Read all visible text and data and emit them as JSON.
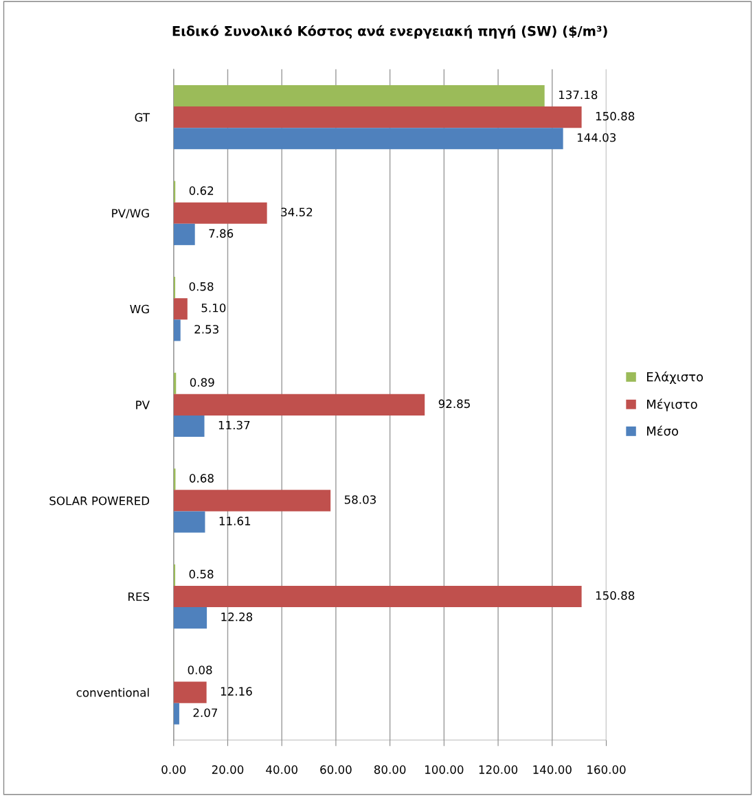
{
  "chart_data": {
    "type": "bar",
    "orientation": "horizontal",
    "title": "Ειδικό Συνολικό Κόστος ανά ενεργειακή πηγή (SW) ($/m³)",
    "categories": [
      "GT",
      "PV/WG",
      "WG",
      "PV",
      "SOLAR POWERED",
      "RES",
      "conventional"
    ],
    "series": [
      {
        "name": "Ελάχιστο",
        "color": "#9bbb59",
        "values": [
          137.18,
          0.62,
          0.58,
          0.89,
          0.68,
          0.58,
          0.08
        ],
        "value_labels": [
          "137.18",
          "0.62",
          "0.58",
          "0.89",
          "0.68",
          "0.58",
          "0.08"
        ]
      },
      {
        "name": "Μέγιστο",
        "color": "#c0504d",
        "values": [
          150.88,
          34.52,
          5.1,
          92.85,
          58.03,
          150.88,
          12.16
        ],
        "value_labels": [
          "150.88",
          "34.52",
          "5.10",
          "92.85",
          "58.03",
          "150.88",
          "12.16"
        ]
      },
      {
        "name": "Μέσο",
        "color": "#4f81bd",
        "values": [
          144.03,
          7.86,
          2.53,
          11.37,
          11.61,
          12.28,
          2.07
        ],
        "value_labels": [
          "144.03",
          "7.86",
          "2.53",
          "11.37",
          "11.61",
          "12.28",
          "2.07"
        ]
      }
    ],
    "xlim": [
      0,
      160
    ],
    "xticks": [
      {
        "value": 0,
        "label": "0.00"
      },
      {
        "value": 20,
        "label": "20.00"
      },
      {
        "value": 40,
        "label": "40.00"
      },
      {
        "value": 60,
        "label": "60.00"
      },
      {
        "value": 80,
        "label": "80.00"
      },
      {
        "value": 100,
        "label": "100.00"
      },
      {
        "value": 120,
        "label": "120.00"
      },
      {
        "value": 140,
        "label": "140.00"
      },
      {
        "value": 160,
        "label": "160.00"
      }
    ],
    "grid": "x",
    "legend": "right"
  }
}
